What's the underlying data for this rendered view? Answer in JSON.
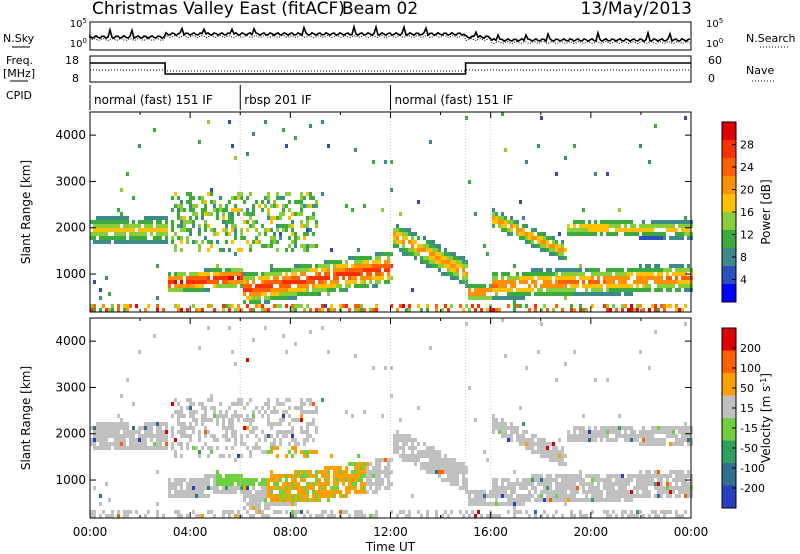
{
  "header": {
    "title": "Christmas Valley East (fitACF)",
    "beam": "Beam 02",
    "date": "13/May/2013"
  },
  "top_panels": {
    "nsky_label": "N.Sky",
    "nsearch_label": "N.Search",
    "noise_ticks_left": [
      "10^5",
      "10^0"
    ],
    "noise_ticks_right": [
      "10^5",
      "10^0"
    ],
    "freq_label": "Freq.",
    "freq_unit": "[MHz]",
    "freq_ticks": [
      "18",
      "8"
    ],
    "nave_label": "Nave",
    "nave_ticks": [
      "60",
      "0"
    ],
    "cpid_label": "CPID",
    "cpid_segments": [
      {
        "label": "normal (fast) 151 IF",
        "start": 0,
        "end": 6
      },
      {
        "label": "rbsp 201 IF",
        "start": 6,
        "end": 12
      },
      {
        "label": "normal (fast) 151 IF",
        "start": 12,
        "end": 24
      }
    ]
  },
  "chart_data": [
    {
      "type": "heatmap",
      "name": "Power",
      "ylabel": "Slant Range [km]",
      "ylim": [
        180,
        4500
      ],
      "y_ticks": [
        1000,
        2000,
        3000,
        4000
      ],
      "xlim": [
        0,
        24
      ],
      "colorbar": {
        "label": "Power [dB]",
        "ticks": [
          "28",
          "24",
          "20",
          "16",
          "12",
          "8",
          "4"
        ],
        "colors": [
          "#0000ff",
          "#2a4fbf",
          "#3d8a8a",
          "#3daa3d",
          "#8acd3a",
          "#ffc000",
          "#ff9000",
          "#ff6000",
          "#ff3000",
          "#e00000"
        ]
      }
    },
    {
      "type": "heatmap",
      "name": "Velocity",
      "ylabel": "Slant Range [km]",
      "ylim": [
        180,
        4500
      ],
      "y_ticks": [
        1000,
        2000,
        3000,
        4000
      ],
      "xlim": [
        0,
        24
      ],
      "colorbar": {
        "label": "Velocity [m s^-1]",
        "ticks": [
          "200",
          "100",
          "50",
          "15",
          "-15",
          "-50",
          "-100",
          "-200"
        ],
        "colors": [
          "#2a3fbf",
          "#2f6f8f",
          "#2f9f5f",
          "#6fd03f",
          "#c0c0c0",
          "#ffa000",
          "#ff6000",
          "#e00000"
        ]
      }
    }
  ],
  "x_axis": {
    "ticks": [
      "00:00",
      "04:00",
      "08:00",
      "12:00",
      "16:00",
      "20:00",
      "00:00"
    ],
    "label": "Time UT"
  }
}
